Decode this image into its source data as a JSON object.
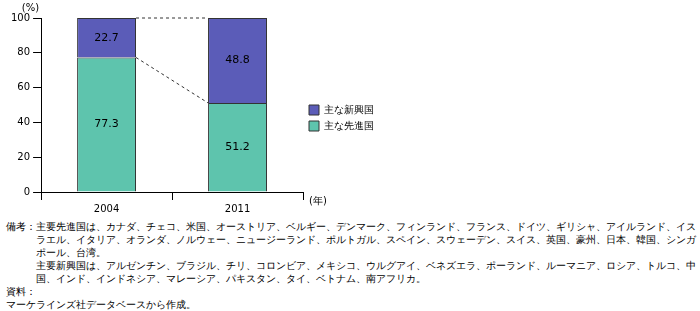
{
  "chart_data": {
    "type": "bar",
    "stacked": true,
    "data_labels": true,
    "legend": "right",
    "grid": false,
    "categories": [
      "2004",
      "2011"
    ],
    "series": [
      {
        "name": "主な先進国",
        "color": "#5ec4ad",
        "values": [
          77.3,
          51.2
        ]
      },
      {
        "name": "主な新興国",
        "color": "#5b5cb8",
        "values": [
          22.7,
          48.8
        ]
      }
    ],
    "ylim": [
      0,
      100
    ],
    "yticks": [
      0,
      20,
      40,
      60,
      80,
      100
    ],
    "y_label": "(%)",
    "x_label": "(年)"
  },
  "notes": [
    {
      "label": "備考：",
      "lines": [
        "主要先進国は、カナダ、チェコ、米国、オーストリア、ベルギー、デンマーク、フィンランド、フランス、ドイツ、ギリシャ、アイルランド、イスラエル、イタリア、オランダ、ノルウェー、ニュージーランド、ポルトガル、スペイン、スウェーデン、スイス、英国、豪州、日本、韓国、シンガポール、台湾。",
        "主要新興国は、アルゼンチン、ブラジル、チリ、コロンビア、メキシコ、ウルグアイ、ベネズエラ、ポーランド、ルーマニア、ロシア、トルコ、中国、インド、インドネシア、マレーシア、パキスタン、タイ、ベトナム、南アフリカ。"
      ]
    },
    {
      "label": "資料：",
      "lines": [
        "マーケラインズ社データベースから作成。"
      ]
    }
  ]
}
